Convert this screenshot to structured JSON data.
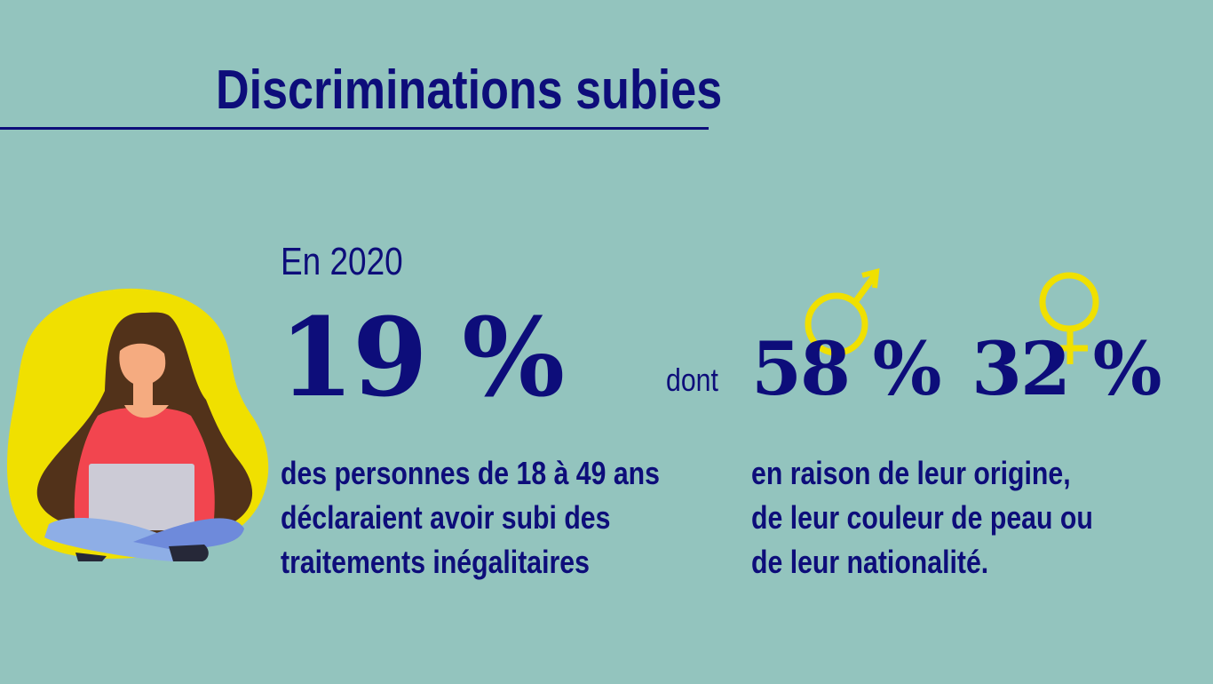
{
  "title": "Discriminations subies",
  "year_label": "En 2020",
  "main_stat": "19 %",
  "main_description": [
    "des personnes de 18 à 49 ans",
    "déclaraient avoir subi des",
    "traitements inégalitaires"
  ],
  "connector": "dont",
  "male_stat": "58 %",
  "female_stat": "32 %",
  "sub_description": [
    "en raison de leur origine,",
    "de leur couleur de peau ou",
    "de leur nationalité."
  ],
  "icons": {
    "male": "male-symbol-icon",
    "female": "female-symbol-icon",
    "illustration": "woman-with-laptop"
  },
  "colors": {
    "background": "#93c4be",
    "text": "#0d0d7a",
    "accent": "#f0e000"
  }
}
